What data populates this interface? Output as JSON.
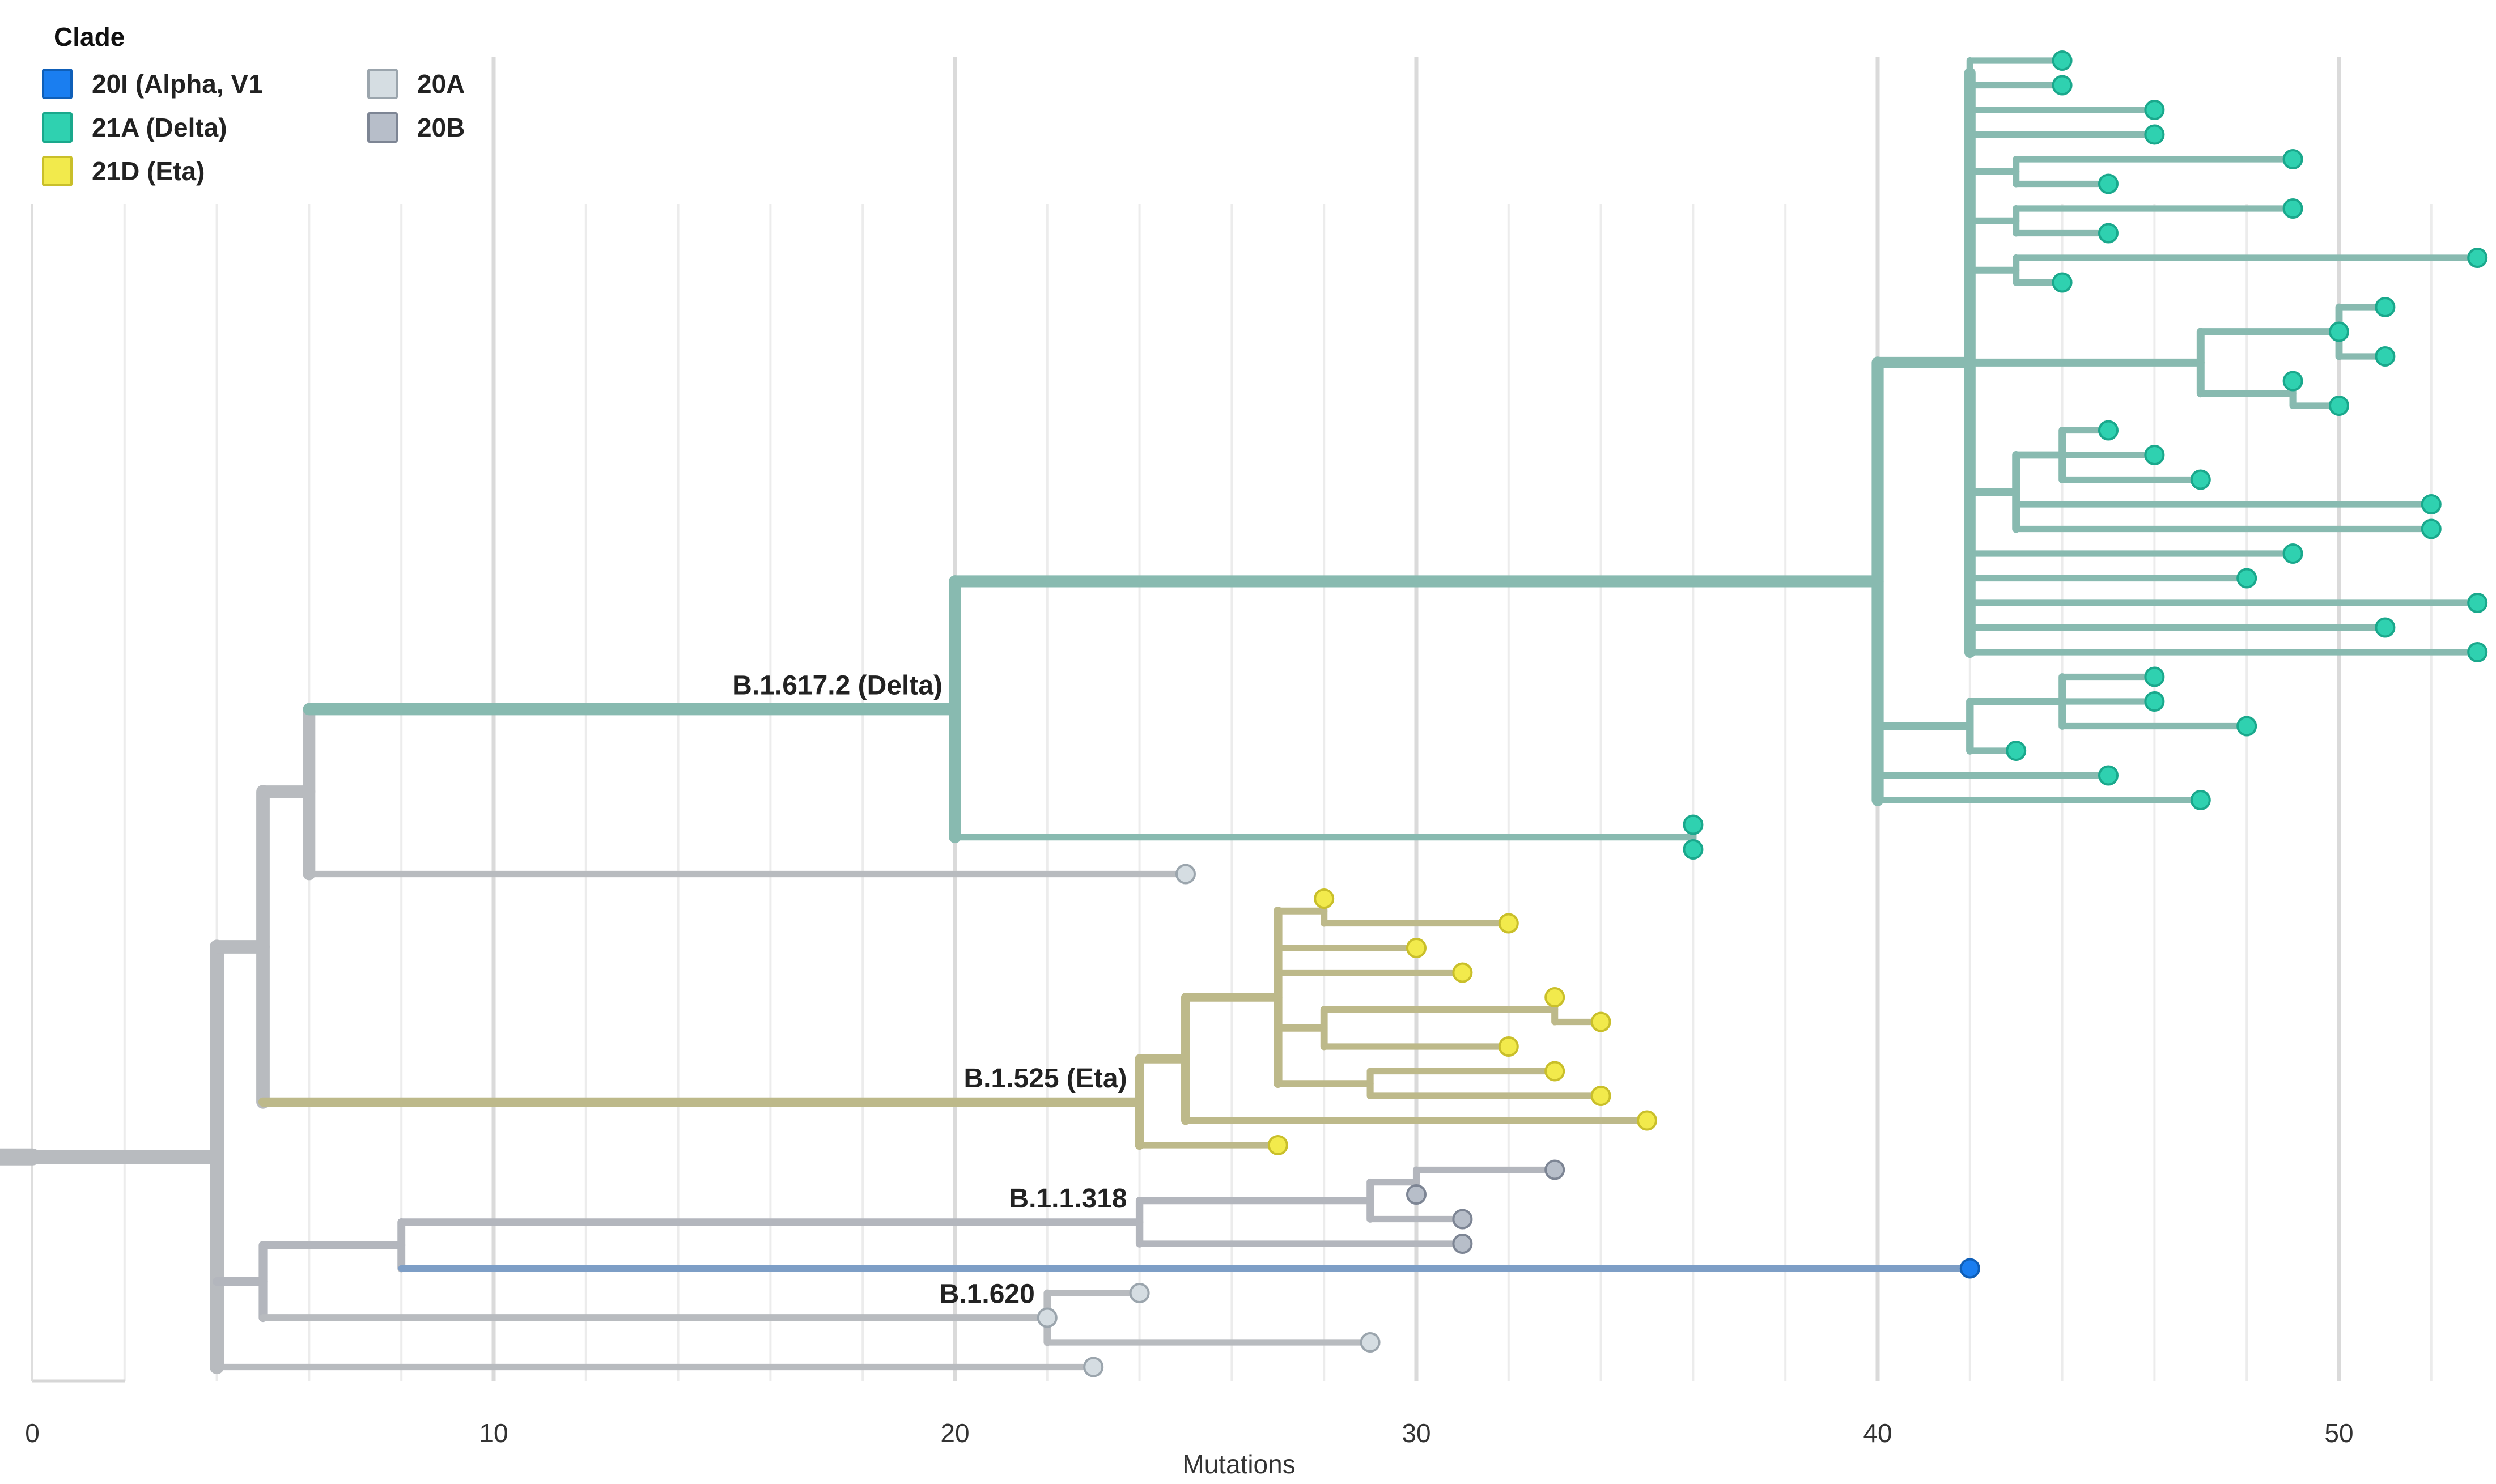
{
  "chart_data": {
    "type": "phylogenetic-tree",
    "title": "",
    "xlabel": "Mutations",
    "ylabel": "",
    "xlim": [
      0,
      53.5
    ],
    "xticks": [
      0,
      10,
      20,
      30,
      40,
      50
    ],
    "grid": true,
    "legend": {
      "title": "Clade",
      "position": "top-left",
      "entries": [
        {
          "label": "20I (Alpha, V1",
          "fill": "#1a7ef0",
          "border": "#0f5fb8"
        },
        {
          "label": "21A (Delta)",
          "fill": "#2fd1b0",
          "border": "#1aa88c"
        },
        {
          "label": "21D (Eta)",
          "fill": "#f2ea4c",
          "border": "#c9bf2a"
        },
        {
          "label": "20A",
          "fill": "#d5dde2",
          "border": "#9ba5ad"
        },
        {
          "label": "20B",
          "fill": "#b7bec9",
          "border": "#7d8594"
        }
      ]
    },
    "branch_colors": {
      "21A": "#88bab0",
      "21D": "#bdb98a",
      "20A": "#b8bbbf",
      "20B": "#b3b6bd",
      "20I": "#7d9ec6"
    },
    "branch_labels": [
      {
        "node": "delta",
        "text": "B.1.617.2 (Delta)"
      },
      {
        "node": "eta",
        "text": "B.1.525 (Eta)"
      },
      {
        "node": "b11318",
        "text": "B.1.1.318"
      },
      {
        "node": "b1620",
        "text": "B.1.620"
      }
    ],
    "tree": {
      "id": "root",
      "x": 0,
      "clade": "20A",
      "children": [
        {
          "id": "n4",
          "x": 4,
          "clade": "20A",
          "children": [
            {
              "id": "n5",
              "x": 5,
              "clade": "20A",
              "children": [
                {
                  "id": "n6",
                  "x": 6,
                  "clade": "20A",
                  "children": [
                    {
                      "id": "delta",
                      "x": 20,
                      "clade": "21A",
                      "children": [
                        {
                          "id": "d40",
                          "x": 40,
                          "clade": "21A",
                          "children": [
                            {
                              "id": "d42",
                              "x": 42,
                              "clade": "21A",
                              "children": [
                                {
                                  "id": "a1",
                                  "x": 42,
                                  "clade": "21A",
                                  "children": [
                                    {
                                      "x": 44,
                                      "clade": "21A"
                                    },
                                    {
                                      "x": 44,
                                      "clade": "21A"
                                    }
                                  ]
                                },
                                {
                                  "id": "a2",
                                  "x": 42,
                                  "clade": "21A",
                                  "children": [
                                    {
                                      "x": 46,
                                      "clade": "21A"
                                    },
                                    {
                                      "x": 46,
                                      "clade": "21A"
                                    }
                                  ]
                                },
                                {
                                  "id": "a3",
                                  "x": 43,
                                  "clade": "21A",
                                  "children": [
                                    {
                                      "x": 49,
                                      "clade": "21A"
                                    },
                                    {
                                      "x": 45,
                                      "clade": "21A"
                                    }
                                  ]
                                },
                                {
                                  "id": "a4",
                                  "x": 43,
                                  "clade": "21A",
                                  "children": [
                                    {
                                      "x": 49,
                                      "clade": "21A"
                                    },
                                    {
                                      "x": 45,
                                      "clade": "21A"
                                    }
                                  ]
                                },
                                {
                                  "id": "a5",
                                  "x": 43,
                                  "clade": "21A",
                                  "children": [
                                    {
                                      "x": 53,
                                      "clade": "21A"
                                    },
                                    {
                                      "x": 44,
                                      "clade": "21A"
                                    }
                                  ]
                                },
                                {
                                  "id": "a6",
                                  "x": 47,
                                  "clade": "21A",
                                  "children": [
                                    {
                                      "x": 50,
                                      "clade": "21A",
                                      "children": [
                                        {
                                          "x": 51,
                                          "clade": "21A"
                                        },
                                        {
                                          "x": 50,
                                          "clade": "21A"
                                        },
                                        {
                                          "x": 51,
                                          "clade": "21A"
                                        }
                                      ]
                                    },
                                    {
                                      "x": 49,
                                      "clade": "21A",
                                      "children": [
                                        {
                                          "x": 49,
                                          "clade": "21A"
                                        },
                                        {
                                          "x": 50,
                                          "clade": "21A"
                                        }
                                      ]
                                    }
                                  ]
                                },
                                {
                                  "id": "a7",
                                  "x": 43,
                                  "clade": "21A",
                                  "children": [
                                    {
                                      "x": 44,
                                      "clade": "21A",
                                      "children": [
                                        {
                                          "x": 45,
                                          "clade": "21A"
                                        },
                                        {
                                          "x": 46,
                                          "clade": "21A"
                                        },
                                        {
                                          "x": 47,
                                          "clade": "21A"
                                        }
                                      ]
                                    },
                                    {
                                      "x": 52,
                                      "clade": "21A"
                                    },
                                    {
                                      "x": 52,
                                      "clade": "21A"
                                    }
                                  ]
                                },
                                {
                                  "x": 49,
                                  "clade": "21A"
                                },
                                {
                                  "x": 48,
                                  "clade": "21A"
                                },
                                {
                                  "x": 53,
                                  "clade": "21A"
                                },
                                {
                                  "x": 51,
                                  "clade": "21A"
                                },
                                {
                                  "x": 53,
                                  "clade": "21A"
                                }
                              ]
                            },
                            {
                              "id": "d42b",
                              "x": 42,
                              "clade": "21A",
                              "children": [
                                {
                                  "x": 44,
                                  "clade": "21A",
                                  "children": [
                                    {
                                      "x": 46,
                                      "clade": "21A"
                                    },
                                    {
                                      "x": 46,
                                      "clade": "21A"
                                    },
                                    {
                                      "x": 48,
                                      "clade": "21A"
                                    }
                                  ]
                                },
                                {
                                  "x": 43,
                                  "clade": "21A"
                                }
                              ]
                            },
                            {
                              "x": 45,
                              "clade": "21A"
                            },
                            {
                              "x": 47,
                              "clade": "21A"
                            }
                          ]
                        },
                        {
                          "x": 36,
                          "clade": "21A",
                          "children": [
                            {
                              "x": 36,
                              "clade": "21A"
                            },
                            {
                              "x": 36,
                              "clade": "21A"
                            }
                          ]
                        }
                      ]
                    },
                    {
                      "x": 25,
                      "clade": "20A"
                    }
                  ]
                },
                {
                  "id": "eta",
                  "x": 24,
                  "clade": "21D",
                  "children": [
                    {
                      "x": 25,
                      "clade": "21D",
                      "children": [
                        {
                          "x": 27,
                          "clade": "21D",
                          "children": [
                            {
                              "x": 28,
                              "clade": "21D",
                              "children": [
                                {
                                  "x": 28,
                                  "clade": "21D"
                                },
                                {
                                  "x": 32,
                                  "clade": "21D"
                                }
                              ]
                            },
                            {
                              "x": 30,
                              "clade": "21D"
                            },
                            {
                              "x": 31,
                              "clade": "21D"
                            },
                            {
                              "x": 28,
                              "clade": "21D",
                              "children": [
                                {
                                  "x": 33,
                                  "clade": "21D",
                                  "children": [
                                    {
                                      "x": 33,
                                      "clade": "21D"
                                    },
                                    {
                                      "x": 34,
                                      "clade": "21D"
                                    }
                                  ]
                                },
                                {
                                  "x": 32,
                                  "clade": "21D"
                                }
                              ]
                            },
                            {
                              "x": 29,
                              "clade": "21D",
                              "children": [
                                {
                                  "x": 33,
                                  "clade": "21D"
                                },
                                {
                                  "x": 34,
                                  "clade": "21D"
                                }
                              ]
                            }
                          ]
                        },
                        {
                          "x": 35,
                          "clade": "21D"
                        }
                      ]
                    },
                    {
                      "x": 27,
                      "clade": "21D"
                    }
                  ]
                }
              ]
            },
            {
              "x": 5,
              "clade": "20B",
              "children": [
                {
                  "x": 8,
                  "clade": "20B",
                  "children": [
                    {
                      "id": "b11318",
                      "x": 24,
                      "clade": "20B",
                      "children": [
                        {
                          "x": 29,
                          "clade": "20B",
                          "children": [
                            {
                              "x": 30,
                              "clade": "20B",
                              "children": [
                                {
                                  "x": 33,
                                  "clade": "20B"
                                },
                                {
                                  "x": 30,
                                  "clade": "20B"
                                }
                              ]
                            },
                            {
                              "x": 31,
                              "clade": "20B"
                            }
                          ]
                        },
                        {
                          "x": 31,
                          "clade": "20B"
                        }
                      ]
                    },
                    {
                      "x": 42,
                      "clade": "20I"
                    }
                  ]
                },
                {
                  "id": "b1620",
                  "x": 22,
                  "clade": "20A",
                  "children": [
                    {
                      "x": 22,
                      "clade": "20A",
                      "children": [
                        {
                          "x": 24,
                          "clade": "20A"
                        },
                        {
                          "x": 22,
                          "clade": "20A"
                        },
                        {
                          "x": 29,
                          "clade": "20A"
                        }
                      ]
                    }
                  ]
                }
              ]
            },
            {
              "x": 23,
              "clade": "20A"
            }
          ]
        }
      ]
    }
  }
}
